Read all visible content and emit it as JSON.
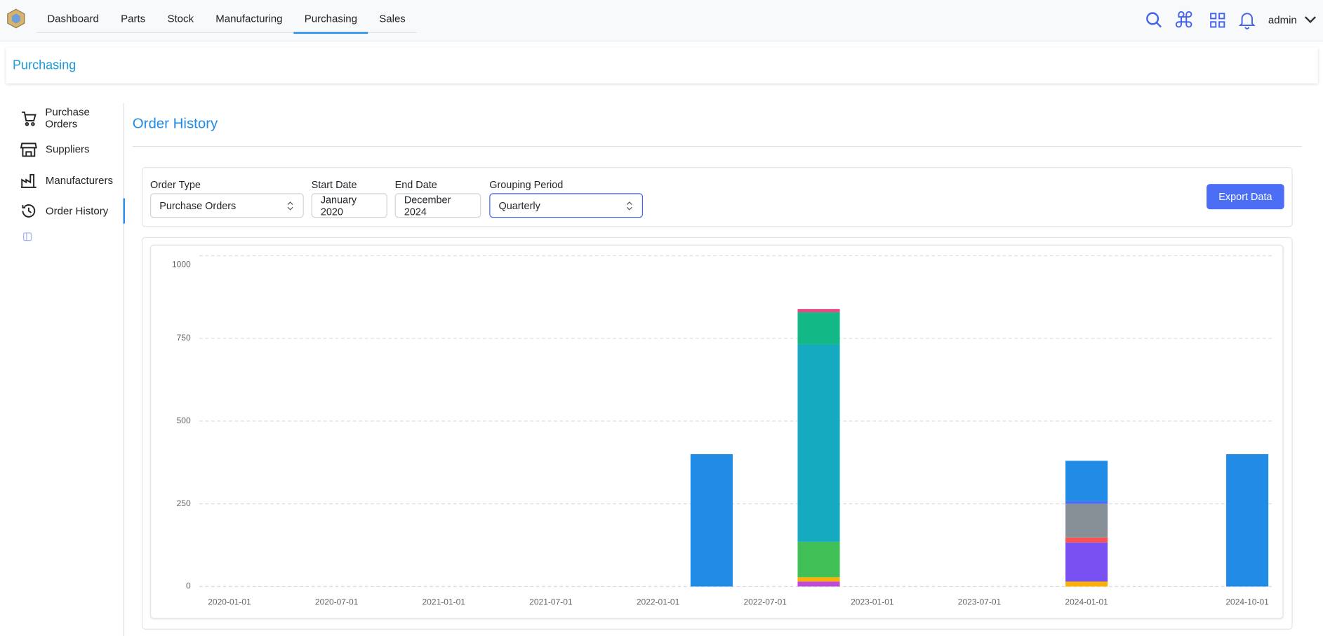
{
  "nav": {
    "tabs": [
      "Dashboard",
      "Parts",
      "Stock",
      "Manufacturing",
      "Purchasing",
      "Sales"
    ],
    "active_tab": 4,
    "user": "admin"
  },
  "page_title": "Purchasing",
  "sidebar": {
    "items": [
      "Purchase Orders",
      "Suppliers",
      "Manufacturers",
      "Order History"
    ],
    "active": 3
  },
  "panel_title": "Order History",
  "filters": [
    {
      "label": "Order Type",
      "value": "Purchase Orders"
    },
    {
      "label": "Start Date",
      "value": "January 2020"
    },
    {
      "label": "End Date",
      "value": "December 2024"
    },
    {
      "label": "Grouping Period",
      "value": "Quarterly"
    }
  ],
  "export_button": "Export Data",
  "chart_data": {
    "type": "bar",
    "stacked": true,
    "grid": true,
    "categories": [
      "2020-01-01",
      null,
      "2020-07-01",
      null,
      "2021-01-01",
      null,
      "2021-07-01",
      null,
      "2022-01-01",
      null,
      "2022-07-01",
      null,
      "2023-01-01",
      null,
      "2023-07-01",
      null,
      "2024-01-01",
      null,
      null,
      "2024-10-01"
    ],
    "ylim": [
      0,
      1000
    ],
    "yticks": [
      0,
      250,
      500,
      750,
      1000
    ],
    "series": [
      {
        "color": "#be4bdb",
        "values": [
          null,
          null,
          null,
          null,
          null,
          null,
          null,
          null,
          null,
          null,
          null,
          15,
          null,
          null,
          null,
          null,
          null,
          null,
          null,
          null
        ]
      },
      {
        "color": "#fab005",
        "values": [
          null,
          null,
          null,
          null,
          null,
          null,
          null,
          null,
          null,
          null,
          null,
          13,
          null,
          null,
          null,
          null,
          15,
          null,
          null,
          null
        ]
      },
      {
        "color": "#40c057",
        "values": [
          null,
          null,
          null,
          null,
          null,
          null,
          null,
          null,
          null,
          null,
          null,
          107,
          null,
          null,
          null,
          null,
          null,
          null,
          null,
          null
        ]
      },
      {
        "color": "#7950f2",
        "values": [
          null,
          null,
          null,
          null,
          null,
          null,
          null,
          null,
          null,
          null,
          null,
          null,
          null,
          null,
          null,
          null,
          118,
          null,
          null,
          null
        ]
      },
      {
        "color": "#fa5252",
        "values": [
          null,
          null,
          null,
          null,
          null,
          null,
          null,
          null,
          null,
          null,
          null,
          null,
          null,
          null,
          null,
          null,
          15,
          null,
          null,
          null
        ]
      },
      {
        "color": "#868e96",
        "values": [
          null,
          null,
          null,
          null,
          null,
          null,
          null,
          null,
          null,
          null,
          null,
          null,
          null,
          null,
          null,
          null,
          102,
          null,
          null,
          null
        ]
      },
      {
        "color": "#15aabf",
        "values": [
          null,
          null,
          null,
          null,
          null,
          null,
          null,
          null,
          null,
          null,
          null,
          597,
          null,
          null,
          null,
          null,
          null,
          null,
          null,
          null
        ]
      },
      {
        "color": "#12b886",
        "values": [
          null,
          null,
          null,
          null,
          null,
          null,
          null,
          null,
          null,
          null,
          null,
          97,
          null,
          null,
          null,
          null,
          null,
          null,
          null,
          null
        ]
      },
      {
        "color": "#e64980",
        "values": [
          null,
          null,
          null,
          null,
          null,
          null,
          null,
          null,
          null,
          null,
          null,
          10,
          null,
          null,
          null,
          null,
          null,
          null,
          null,
          null
        ]
      },
      {
        "color": "#4c6ef5",
        "values": [
          null,
          null,
          null,
          null,
          null,
          null,
          null,
          null,
          null,
          null,
          null,
          null,
          null,
          null,
          null,
          null,
          8,
          null,
          null,
          null
        ]
      },
      {
        "color": "#228be6",
        "values": [
          null,
          null,
          null,
          null,
          null,
          null,
          null,
          null,
          null,
          400,
          null,
          null,
          null,
          null,
          null,
          null,
          122,
          null,
          null,
          400
        ]
      }
    ]
  }
}
